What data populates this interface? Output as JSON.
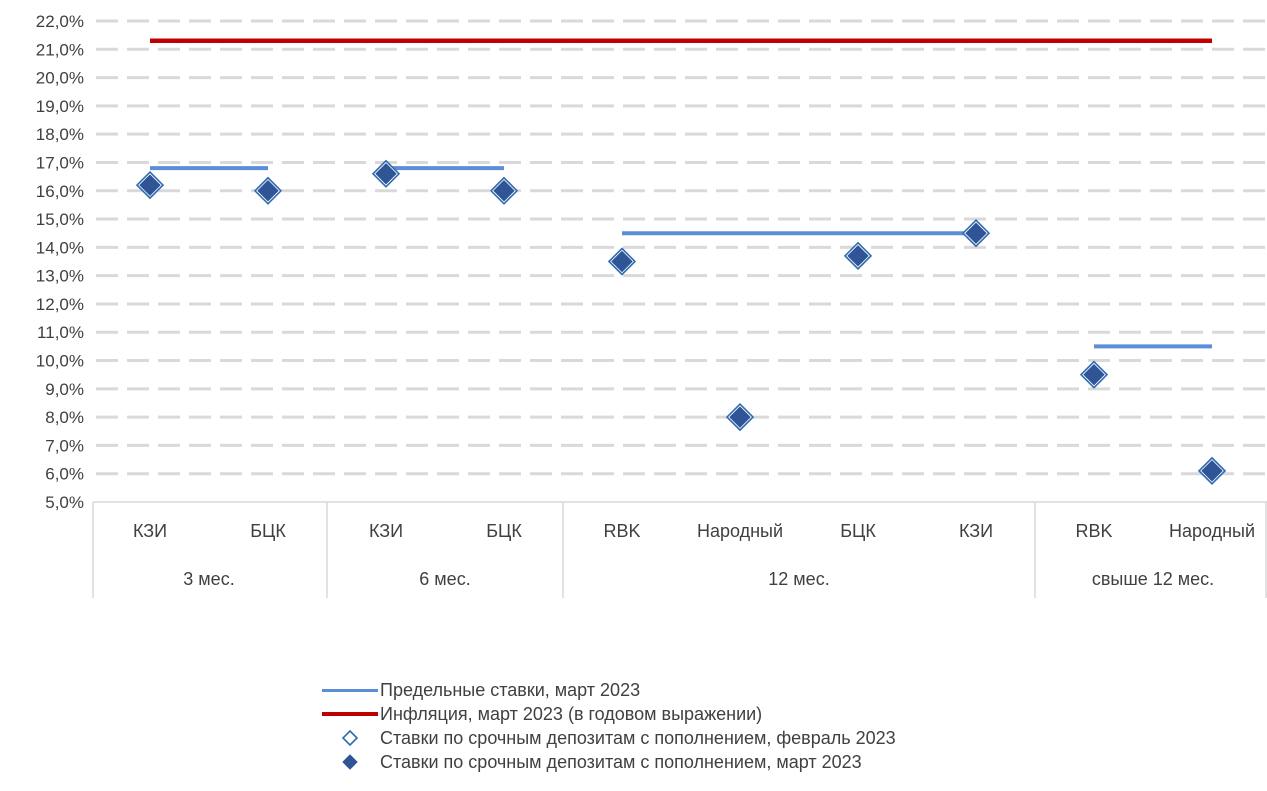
{
  "chart_data": {
    "type": "scatter",
    "y_axis": {
      "min": 5,
      "max": 22,
      "step": 1,
      "tick_labels": [
        "5,0%",
        "6,0%",
        "7,0%",
        "8,0%",
        "9,0%",
        "10,0%",
        "11,0%",
        "12,0%",
        "13,0%",
        "14,0%",
        "15,0%",
        "16,0%",
        "17,0%",
        "18,0%",
        "19,0%",
        "20,0%",
        "21,0%",
        "22,0%"
      ],
      "gridlines": "dashed"
    },
    "categories": [
      "КЗИ",
      "БЦК",
      "КЗИ",
      "БЦК",
      "RBK",
      "Народный",
      "БЦК",
      "КЗИ",
      "RBK",
      "Народный"
    ],
    "groups": [
      {
        "label": "3 мес.",
        "from": 0,
        "to": 1
      },
      {
        "label": "6 мес.",
        "from": 2,
        "to": 3
      },
      {
        "label": "12 мес.",
        "from": 4,
        "to": 7
      },
      {
        "label": "свыше 12 мес.",
        "from": 8,
        "to": 9
      }
    ],
    "series": [
      {
        "name": "Предельные ставки, март 2023",
        "kind": "segments",
        "color": "#5B8ED6",
        "segments": [
          {
            "from": 0,
            "to": 1,
            "value": 16.8
          },
          {
            "from": 2,
            "to": 3,
            "value": 16.8
          },
          {
            "from": 4,
            "to": 7,
            "value": 14.5
          },
          {
            "from": 8,
            "to": 9,
            "value": 10.5
          }
        ]
      },
      {
        "name": "Инфляция, март 2023 (в годовом выражении)",
        "kind": "line",
        "color": "#C00000",
        "from": 0,
        "to": 9,
        "value": 21.3
      },
      {
        "name": "Ставки по срочным депозитам с пополнением, февраль 2023",
        "kind": "markers-open",
        "color": "#2E6BB0",
        "values": [
          16.2,
          16.0,
          16.6,
          16.0,
          13.5,
          8.0,
          13.7,
          14.5,
          9.5,
          6.1
        ]
      },
      {
        "name": "Ставки по срочным депозитам с пополнением, март 2023",
        "kind": "markers-filled",
        "color": "#2F5597",
        "values": [
          16.2,
          16.0,
          16.6,
          16.0,
          13.5,
          8.0,
          13.7,
          14.5,
          9.5,
          6.1
        ]
      }
    ]
  }
}
